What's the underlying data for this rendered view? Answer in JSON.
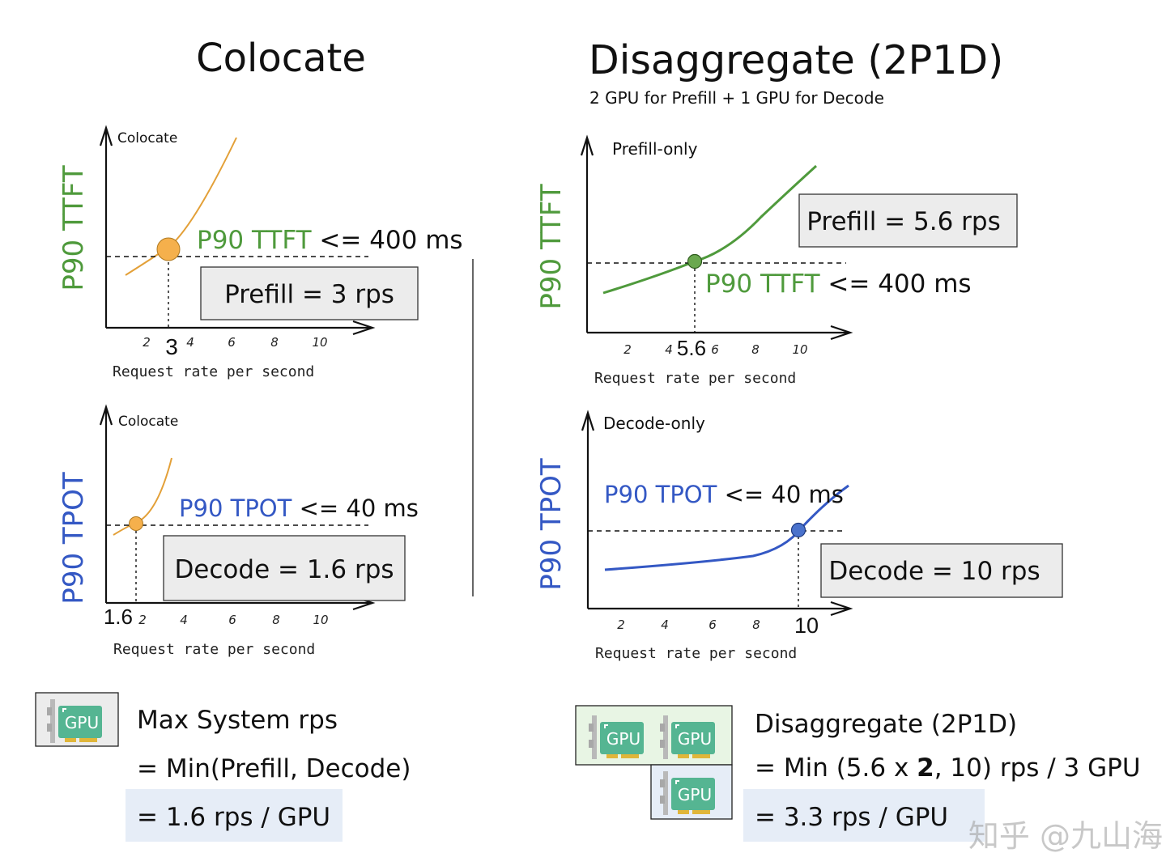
{
  "titles": {
    "left": "Colocate",
    "right": "Disaggregate (2P1D)",
    "right_subtitle": "2 GPU for Prefill + 1 GPU for Decode"
  },
  "colors": {
    "ttft_green": "#4f9a3c",
    "tpot_blue": "#3458c4",
    "orange_curve": "#e3a038",
    "orange_dot": "#f5b04c",
    "green_dot": "#6aa84f",
    "blue_dot": "#4a72cc",
    "box_gray": "#ececec",
    "highlight_blue": "#e6edf7",
    "gpu_green_bg": "#e8f5e4",
    "gpu_teal": "#55b592"
  },
  "charts": {
    "colocate_ttft": {
      "panel_label": "Colocate",
      "ylabel": "P90 TTFT",
      "xlabel": "Request rate per second",
      "ticks": [
        "2",
        "4",
        "6",
        "8",
        "10"
      ],
      "marker_value": "3",
      "slo_metric": "P90 TTFT",
      "slo_rest": "<= 400 ms",
      "result": "Prefill = 3 rps"
    },
    "colocate_tpot": {
      "panel_label": "Colocate",
      "ylabel": "P90 TPOT",
      "xlabel": "Request rate per second",
      "ticks": [
        "2",
        "4",
        "6",
        "8",
        "10"
      ],
      "marker_value": "1.6",
      "slo_metric": "P90 TPOT",
      "slo_rest": "<= 40 ms",
      "result": "Decode = 1.6 rps"
    },
    "prefill_only": {
      "panel_label": "Prefill-only",
      "ylabel": "P90 TTFT",
      "xlabel": "Request rate per second",
      "ticks": [
        "2",
        "4",
        "6",
        "8",
        "10"
      ],
      "marker_value": "5.6",
      "slo_metric": "P90 TTFT",
      "slo_rest": "<= 400 ms",
      "result": "Prefill = 5.6 rps"
    },
    "decode_only": {
      "panel_label": "Decode-only",
      "ylabel": "P90 TPOT",
      "xlabel": "Request rate per second",
      "ticks": [
        "2",
        "4",
        "6",
        "8"
      ],
      "marker_value": "10",
      "slo_metric": "P90 TPOT",
      "slo_rest": "<= 40 ms",
      "result": "Decode = 10 rps"
    }
  },
  "summary": {
    "gpu_label": "GPU",
    "left": {
      "line1": "Max System rps",
      "line2": "= Min(Prefill, Decode)",
      "line3": "= 1.6 rps / GPU"
    },
    "right": {
      "line1": "Disaggregate (2P1D)",
      "line2_a": "= Min (5.6 x ",
      "line2_bold": "2",
      "line2_b": ", 10) rps / 3 GPU",
      "line3": "= 3.3 rps / GPU"
    }
  },
  "watermark": "知乎 @九山海"
}
